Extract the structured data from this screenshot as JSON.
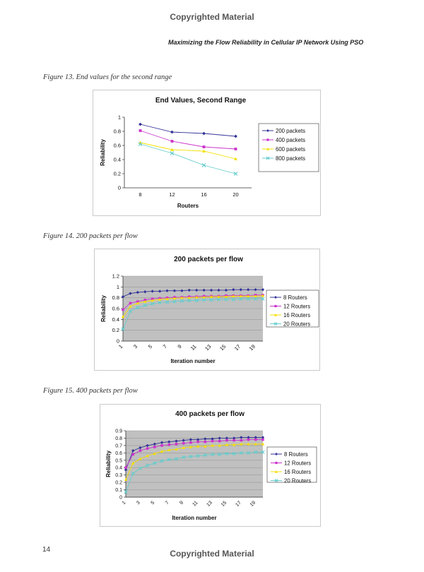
{
  "page": {
    "watermark_top": "Copyrighted Material",
    "watermark_bottom": "Copyrighted Material",
    "running_header": "Maximizing the Flow Reliability in Cellular IP Network Using PSO",
    "page_number": "14"
  },
  "figures": [
    {
      "caption": "Figure 13. End values for the second range"
    },
    {
      "caption": "Figure 14. 200 packets per flow"
    },
    {
      "caption": "Figure 15. 400 packets per flow"
    }
  ],
  "chart_data": [
    {
      "type": "line",
      "title": "End Values, Second Range",
      "xlabel": "Routers",
      "ylabel": "Reliability",
      "categories": [
        "8",
        "12",
        "16",
        "20"
      ],
      "ylim": [
        0,
        1
      ],
      "yticks": [
        "0",
        "0.2",
        "0.4",
        "0.6",
        "0.8",
        "1"
      ],
      "grid": false,
      "legend_position": "right",
      "series": [
        {
          "name": "200 packets",
          "color": "#333399",
          "marker": "diamond",
          "values": [
            0.9,
            0.79,
            0.77,
            0.73
          ]
        },
        {
          "name": "400 packets",
          "color": "#cc33cc",
          "marker": "square",
          "values": [
            0.81,
            0.66,
            0.58,
            0.55
          ]
        },
        {
          "name": "600 packets",
          "color": "#f5e000",
          "marker": "triangle",
          "values": [
            0.64,
            0.54,
            0.52,
            0.41
          ]
        },
        {
          "name": "800 packets",
          "color": "#66cccc",
          "marker": "x",
          "values": [
            0.62,
            0.49,
            0.32,
            0.2
          ]
        }
      ]
    },
    {
      "type": "line",
      "title": "200 packets per flow",
      "xlabel": "Iteration number",
      "ylabel": "Reliability",
      "x": [
        1,
        2,
        3,
        4,
        5,
        6,
        7,
        8,
        9,
        10,
        11,
        12,
        13,
        14,
        15,
        16,
        17,
        18,
        19,
        20
      ],
      "xticks": [
        "1",
        "3",
        "5",
        "7",
        "9",
        "11",
        "13",
        "15",
        "17",
        "19"
      ],
      "ylim": [
        0,
        1.2
      ],
      "yticks": [
        "0",
        "0.2",
        "0.4",
        "0.6",
        "0.8",
        "1",
        "1.2"
      ],
      "grid": true,
      "legend_position": "right",
      "series": [
        {
          "name": "8 Routers",
          "color": "#333399",
          "marker": "diamond",
          "values": [
            0.82,
            0.88,
            0.9,
            0.91,
            0.92,
            0.92,
            0.93,
            0.93,
            0.93,
            0.94,
            0.94,
            0.94,
            0.94,
            0.94,
            0.94,
            0.95,
            0.95,
            0.95,
            0.95,
            0.95
          ]
        },
        {
          "name": "12 Routers",
          "color": "#cc33cc",
          "marker": "square",
          "values": [
            0.58,
            0.7,
            0.73,
            0.76,
            0.78,
            0.79,
            0.8,
            0.81,
            0.81,
            0.82,
            0.82,
            0.83,
            0.83,
            0.83,
            0.84,
            0.84,
            0.84,
            0.84,
            0.85,
            0.85
          ]
        },
        {
          "name": "16 Routers",
          "color": "#f5e000",
          "marker": "triangle",
          "values": [
            0.45,
            0.64,
            0.7,
            0.73,
            0.75,
            0.77,
            0.78,
            0.79,
            0.8,
            0.8,
            0.81,
            0.81,
            0.82,
            0.82,
            0.82,
            0.83,
            0.83,
            0.83,
            0.83,
            0.84
          ]
        },
        {
          "name": "20 Routers",
          "color": "#66cccc",
          "marker": "x",
          "values": [
            0.22,
            0.55,
            0.62,
            0.66,
            0.69,
            0.71,
            0.72,
            0.73,
            0.74,
            0.75,
            0.75,
            0.76,
            0.76,
            0.77,
            0.77,
            0.77,
            0.78,
            0.78,
            0.78,
            0.78
          ]
        }
      ]
    },
    {
      "type": "line",
      "title": "400 packets per flow",
      "xlabel": "Iteration number",
      "ylabel": "Reliability",
      "x": [
        1,
        2,
        3,
        4,
        5,
        6,
        7,
        8,
        9,
        10,
        11,
        12,
        13,
        14,
        15,
        16,
        17,
        18,
        19,
        20
      ],
      "xticks": [
        "1",
        "3",
        "5",
        "7",
        "9",
        "11",
        "13",
        "15",
        "17",
        "19"
      ],
      "ylim": [
        0,
        0.9
      ],
      "yticks": [
        "0",
        "0.1",
        "0.2",
        "0.3",
        "0.4",
        "0.5",
        "0.6",
        "0.7",
        "0.8",
        "0.9"
      ],
      "grid": true,
      "legend_position": "right",
      "series": [
        {
          "name": "8 Routers",
          "color": "#333399",
          "marker": "diamond",
          "values": [
            0.37,
            0.63,
            0.67,
            0.7,
            0.72,
            0.74,
            0.75,
            0.76,
            0.77,
            0.78,
            0.78,
            0.79,
            0.79,
            0.8,
            0.8,
            0.8,
            0.81,
            0.81,
            0.81,
            0.81
          ]
        },
        {
          "name": "12 Routers",
          "color": "#cc33cc",
          "marker": "square",
          "values": [
            0.4,
            0.58,
            0.63,
            0.66,
            0.68,
            0.7,
            0.71,
            0.72,
            0.73,
            0.74,
            0.75,
            0.75,
            0.76,
            0.76,
            0.77,
            0.77,
            0.77,
            0.78,
            0.78,
            0.78
          ]
        },
        {
          "name": "16 Routers",
          "color": "#f5e000",
          "marker": "triangle",
          "values": [
            0.24,
            0.46,
            0.52,
            0.56,
            0.59,
            0.62,
            0.64,
            0.65,
            0.67,
            0.68,
            0.69,
            0.69,
            0.7,
            0.7,
            0.71,
            0.71,
            0.72,
            0.72,
            0.72,
            0.72
          ]
        },
        {
          "name": "20 Routers",
          "color": "#66cccc",
          "marker": "x",
          "values": [
            0.07,
            0.32,
            0.39,
            0.43,
            0.46,
            0.49,
            0.51,
            0.52,
            0.54,
            0.55,
            0.56,
            0.57,
            0.58,
            0.58,
            0.59,
            0.59,
            0.6,
            0.6,
            0.61,
            0.61
          ]
        }
      ]
    }
  ]
}
